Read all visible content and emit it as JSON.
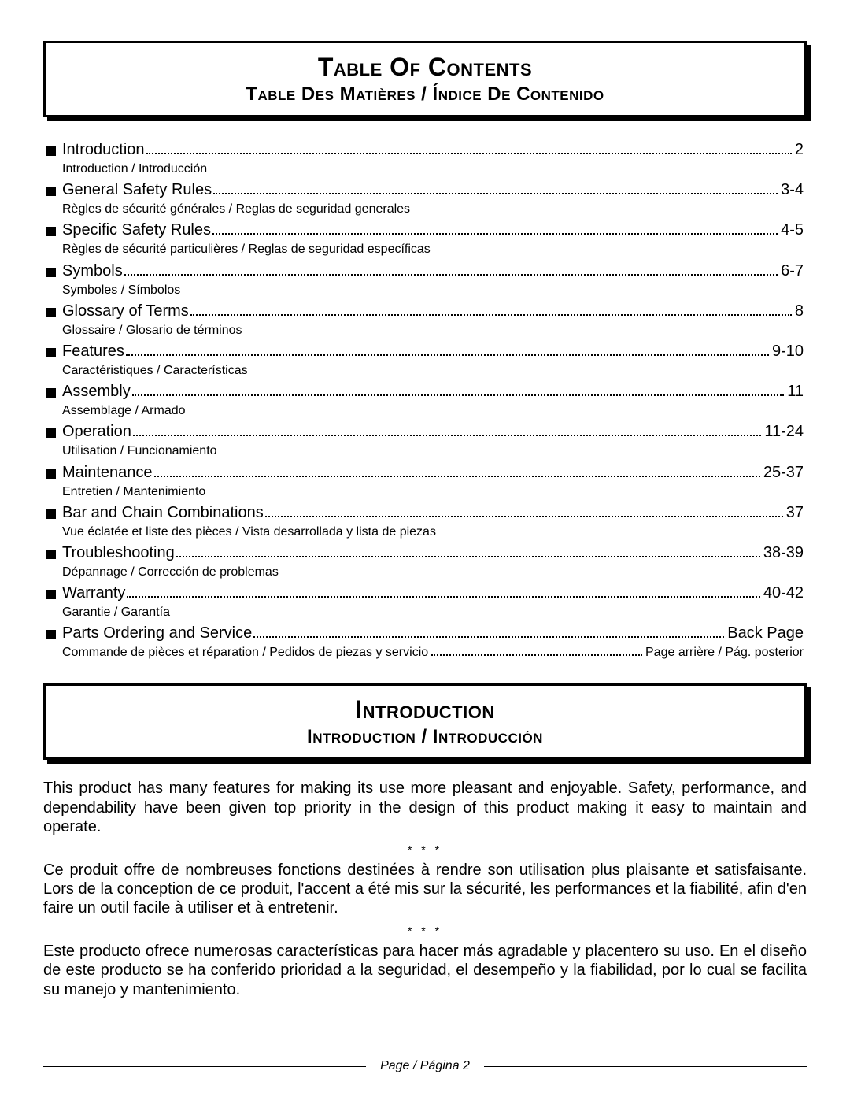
{
  "colors": {
    "text": "#000000",
    "background": "#ffffff",
    "border": "#000000",
    "shadow": "#000000"
  },
  "header1": {
    "title": "Table Of Contents",
    "subtitle": "Table Des Matières / Índice De Contenido"
  },
  "toc": [
    {
      "title": "Introduction",
      "page": "2",
      "sub": "Introduction / Introducción"
    },
    {
      "title": "General Safety Rules",
      "page": "3-4",
      "sub": "Règles de sécurité générales / Reglas de seguridad generales"
    },
    {
      "title": "Specific Safety Rules",
      "page": "4-5",
      "sub": "Règles de sécurité particulières / Reglas de seguridad específicas"
    },
    {
      "title": "Symbols",
      "page": "6-7",
      "sub": "Symboles / Símbolos"
    },
    {
      "title": "Glossary of Terms",
      "page": "8",
      "sub": "Glossaire / Glosario de términos"
    },
    {
      "title": "Features",
      "page": "9-10",
      "sub": "Caractéristiques / Características"
    },
    {
      "title": "Assembly",
      "page": "11",
      "sub": "Assemblage / Armado"
    },
    {
      "title": "Operation",
      "page": "11-24",
      "sub": "Utilisation / Funcionamiento"
    },
    {
      "title": "Maintenance",
      "page": "25-37",
      "sub": "Entretien / Mantenimiento"
    },
    {
      "title": "Bar and Chain Combinations",
      "page": "37",
      "sub": "Vue éclatée et liste des pièces / Vista desarrollada y lista de piezas"
    },
    {
      "title": "Troubleshooting",
      "page": "38-39",
      "sub": "Dépannage / Corrección de problemas"
    },
    {
      "title": "Warranty",
      "page": "40-42",
      "sub": "Garantie / Garantía"
    }
  ],
  "toc_last": {
    "title": "Parts Ordering and Service",
    "page": "Back Page",
    "sub_title": "Commande de pièces et réparation / Pedidos de piezas y servicio",
    "sub_page": "Page arrière / Pág. posterior"
  },
  "header2": {
    "title": "Introduction",
    "subtitle": "Introduction / Introducción"
  },
  "intro": {
    "p1": "This product has many features for making its use more pleasant and enjoyable. Safety, performance, and dependability have been given top priority in the design of this product making it easy to maintain and operate.",
    "sep": "* * *",
    "p2": "Ce produit offre de nombreuses fonctions destinées à rendre son utilisation plus plaisante et satisfaisante. Lors de la conception de ce produit, l'accent a été mis sur la sécurité, les performances et la fiabilité, afin d'en faire un outil facile à utiliser et à entretenir.",
    "p3": "Este producto ofrece numerosas características para hacer más agradable y placentero su uso. En el diseño de este producto se ha conferido prioridad a la seguridad, el desempeño y la fiabilidad, por lo cual se facilita su manejo y mantenimiento."
  },
  "footer": "Page / Página 2"
}
